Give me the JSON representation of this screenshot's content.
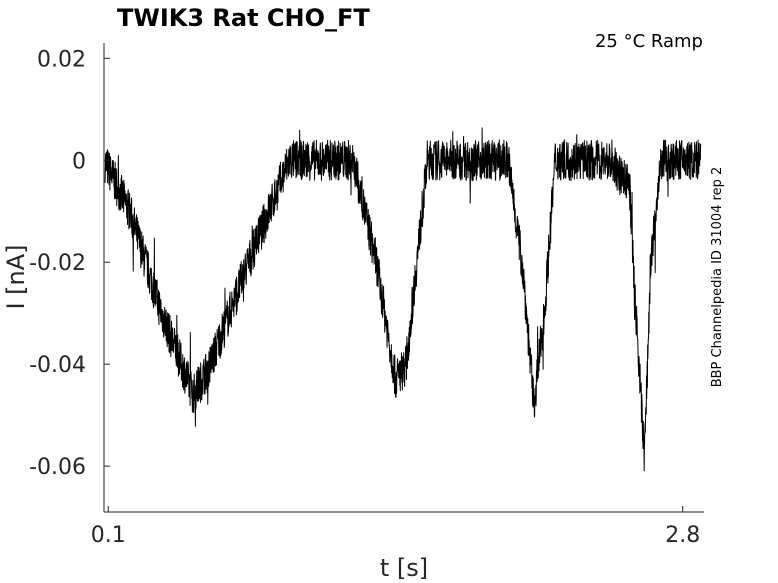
{
  "chart_data": {
    "type": "line",
    "title": "TWIK3  Rat  CHO_FT",
    "annotation": "25 °C  Ramp",
    "side_label": "BBP Channelpedia ID 31004 rep 2",
    "xlabel": "t [s]",
    "ylabel": "I [nA]",
    "xlim": [
      0.08,
      2.9
    ],
    "ylim": [
      -0.069,
      0.023
    ],
    "x_ticks": [
      0.1,
      2.8
    ],
    "x_tick_labels": [
      "0.1",
      "2.8"
    ],
    "y_ticks": [
      0.02,
      0,
      -0.02,
      -0.04,
      -0.06
    ],
    "y_tick_labels": [
      "0.02",
      "0",
      "-0.02",
      "-0.04",
      "-0.06"
    ],
    "grid": false,
    "series": [
      {
        "color": "#000000",
        "x": [
          0.08,
          0.2,
          0.35,
          0.5,
          0.58,
          0.75,
          0.95,
          1.1,
          1.25,
          1.36,
          1.45,
          1.5,
          1.6,
          1.8,
          1.98,
          2.05,
          2.1,
          2.15,
          2.2,
          2.3,
          2.45,
          2.55,
          2.58,
          2.62,
          2.65,
          2.7,
          2.9
        ],
        "y": [
          0.0,
          -0.01,
          -0.03,
          -0.046,
          -0.04,
          -0.021,
          0.0,
          0.0,
          0.0,
          -0.02,
          -0.043,
          -0.04,
          0.0,
          0.0,
          0.0,
          -0.022,
          -0.048,
          -0.03,
          0.0,
          0.0,
          0.0,
          -0.005,
          -0.03,
          -0.058,
          -0.02,
          0.0,
          0.0
        ],
        "noise_amplitude": 0.004
      }
    ]
  }
}
